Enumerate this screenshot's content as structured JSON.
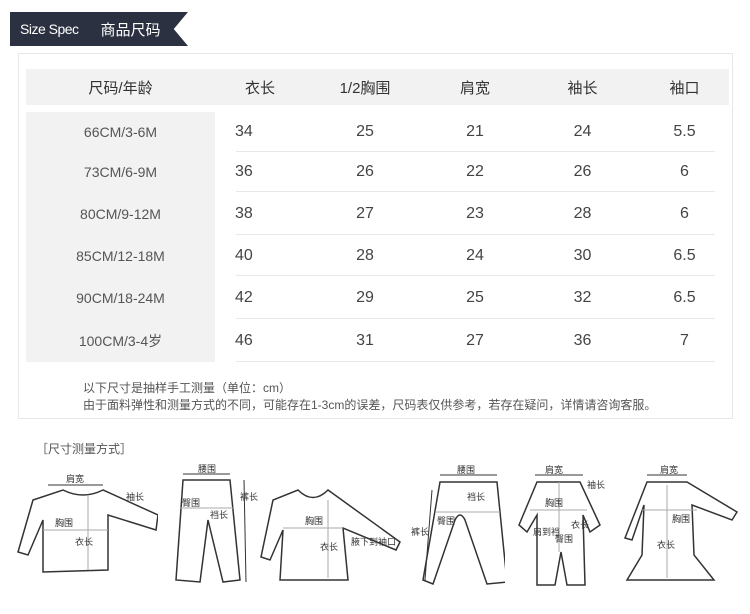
{
  "banner": {
    "en": "Size Spec",
    "cn": "商品尺码"
  },
  "table": {
    "headers": [
      "尺码/年龄",
      "衣长",
      "1/2胸围",
      "肩宽",
      "袖长",
      "袖口"
    ],
    "rows": [
      [
        "66CM/3-6M",
        "34",
        "25",
        "21",
        "24",
        "5.5"
      ],
      [
        "73CM/6-9M",
        "36",
        "26",
        "22",
        "26",
        "6"
      ],
      [
        "80CM/9-12M",
        "38",
        "27",
        "23",
        "28",
        "6"
      ],
      [
        "85CM/12-18M",
        "40",
        "28",
        "24",
        "30",
        "6.5"
      ],
      [
        "90CM/18-24M",
        "42",
        "29",
        "25",
        "32",
        "6.5"
      ],
      [
        "100CM/3-4岁",
        "46",
        "31",
        "27",
        "36",
        "7"
      ]
    ]
  },
  "notes": [
    "以下尺寸是抽样手工测量（单位：cm）",
    "由于面料弹性和测量方式的不同，可能存在1-3cm的误差，尺码表仅供参考，若存在疑问，详情请咨询客服。"
  ],
  "method_title": "［尺寸测量方式］",
  "illustrations": [
    {
      "name": "long-sleeve-top",
      "labels": [
        "肩宽",
        "袖长",
        "胸围",
        "衣长"
      ]
    },
    {
      "name": "pants",
      "labels": [
        "腰围",
        "裤长",
        "臀围",
        "裆长"
      ]
    },
    {
      "name": "raglan-top",
      "labels": [
        "胸围",
        "衣长",
        "腋下到袖口"
      ]
    },
    {
      "name": "open-crotch-pants",
      "labels": [
        "腰围",
        "裆长",
        "臀围",
        "裤长"
      ]
    },
    {
      "name": "romper",
      "labels": [
        "肩宽",
        "袖长",
        "胸围",
        "衣长",
        "肩到裆",
        "臀围"
      ]
    },
    {
      "name": "dress",
      "labels": [
        "肩宽",
        "胸围",
        "衣长"
      ]
    }
  ]
}
